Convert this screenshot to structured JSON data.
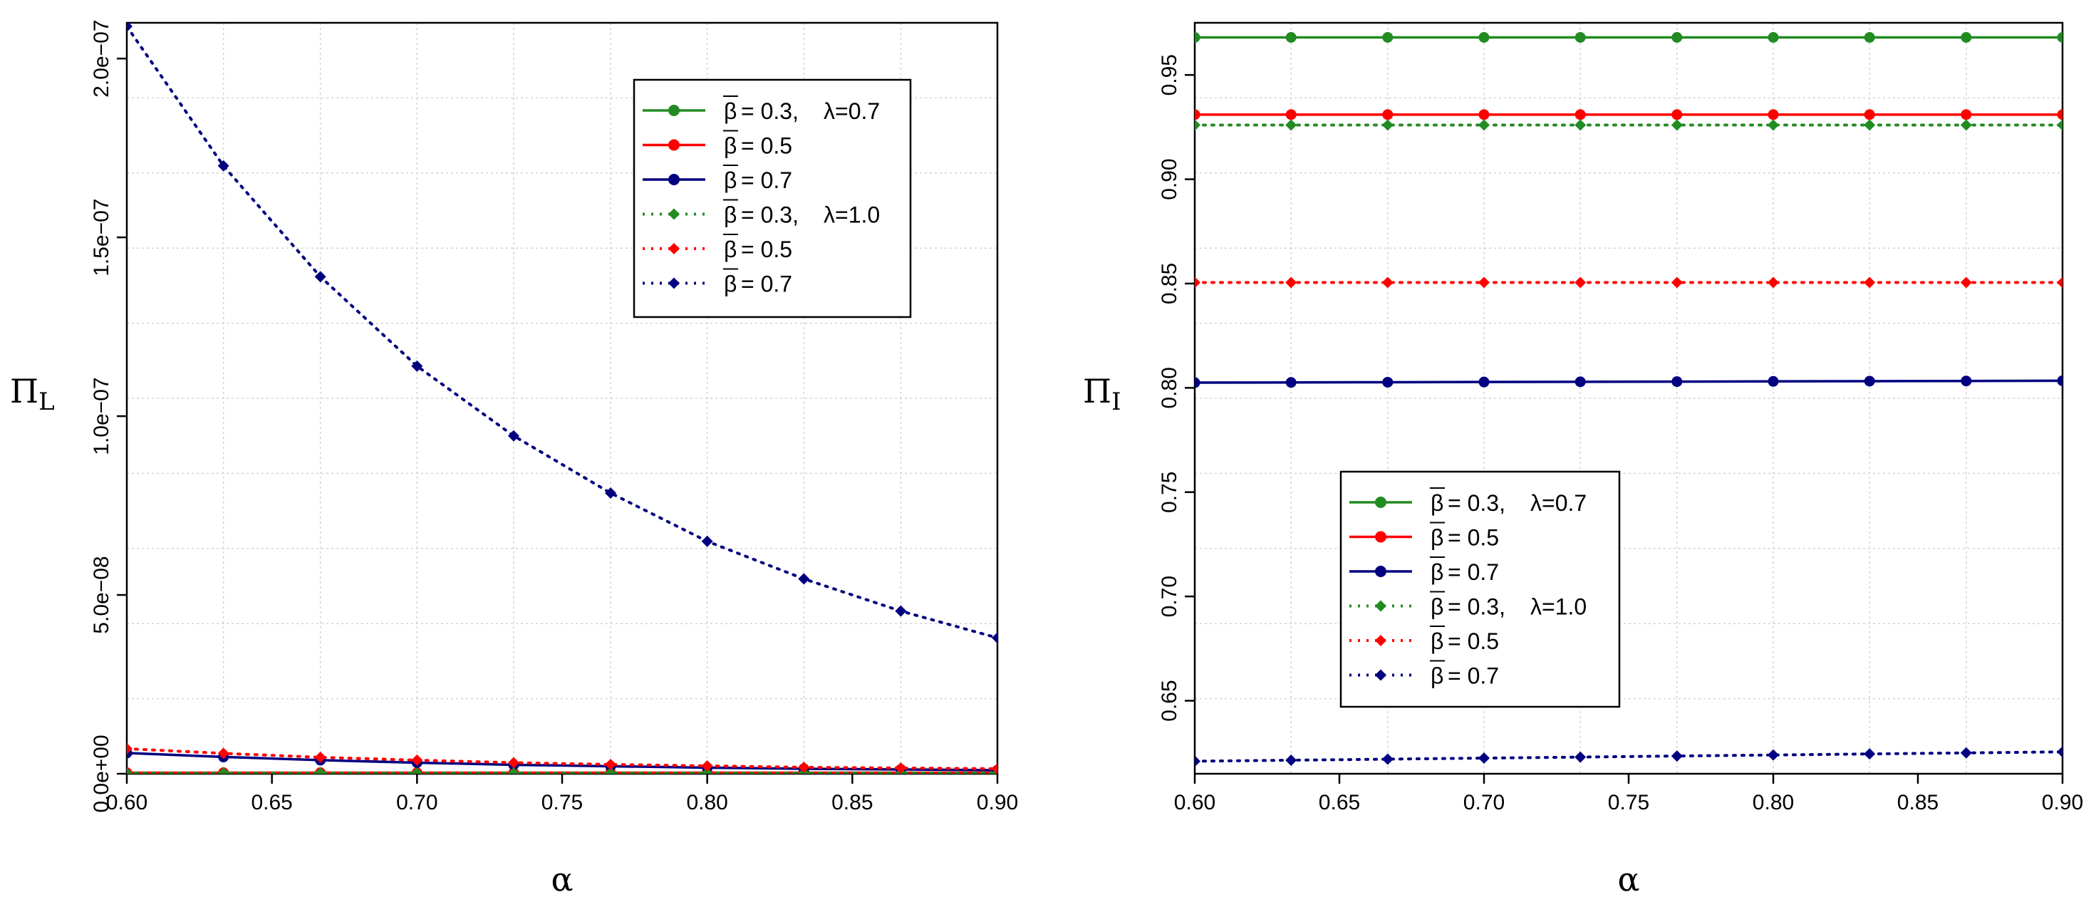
{
  "chart_data": [
    {
      "type": "line",
      "panel": "left",
      "xlabel": "α",
      "ylabel_main": "Π",
      "ylabel_sub": "L",
      "xlim": [
        0.6,
        0.9
      ],
      "ylim": [
        0,
        2.1e-07
      ],
      "x": [
        0.6,
        0.6333,
        0.6667,
        0.7,
        0.7333,
        0.7667,
        0.8,
        0.8333,
        0.8667,
        0.9
      ],
      "xticks": [
        0.6,
        0.65,
        0.7,
        0.75,
        0.8,
        0.85,
        0.9
      ],
      "xtick_labels": [
        "0.60",
        "0.65",
        "0.70",
        "0.75",
        "0.80",
        "0.85",
        "0.90"
      ],
      "yticks": [
        0,
        5e-08,
        1e-07,
        1.5e-07,
        2e-07
      ],
      "ytick_labels": [
        "0.0e+00",
        "5.0e−08",
        "1.0e−07",
        "1.5e−07",
        "2.0e−07"
      ],
      "legend_position": "top-right",
      "series": [
        {
          "name": "β̄=0.3, λ=0.7",
          "color": "#228B22",
          "style": "solid",
          "marker": "circle",
          "values": [
            1e-10,
            1e-10,
            1e-10,
            1e-10,
            1e-10,
            1e-10,
            1e-10,
            1e-10,
            1e-10,
            1e-10
          ]
        },
        {
          "name": "β̄=0.5",
          "color": "#FF0000",
          "style": "solid",
          "marker": "circle",
          "values": [
            3e-10,
            3e-10,
            3e-10,
            3e-10,
            3e-10,
            3e-10,
            3e-10,
            3e-10,
            3e-10,
            3e-10
          ]
        },
        {
          "name": "β̄=0.7",
          "color": "#000080",
          "style": "solid",
          "marker": "circle",
          "values": [
            5.8e-09,
            4.7e-09,
            3.8e-09,
            3.1e-09,
            2.5e-09,
            2.1e-09,
            1.7e-09,
            1.4e-09,
            1.2e-09,
            1e-09
          ]
        },
        {
          "name": "β̄=0.3, λ=1.0",
          "color": "#228B22",
          "style": "dotted",
          "marker": "diamond",
          "values": [
            2e-10,
            2e-10,
            2e-10,
            2e-10,
            2e-10,
            2e-10,
            2e-10,
            2e-10,
            2e-10,
            2e-10
          ]
        },
        {
          "name": "β̄=0.5",
          "color": "#FF0000",
          "style": "dotted",
          "marker": "diamond",
          "values": [
            7e-09,
            5.7e-09,
            4.6e-09,
            3.8e-09,
            3.1e-09,
            2.6e-09,
            2.2e-09,
            1.8e-09,
            1.6e-09,
            1.4e-09
          ]
        },
        {
          "name": "β̄=0.7",
          "color": "#000080",
          "style": "dotted",
          "marker": "diamond",
          "values": [
            2.09e-07,
            1.7e-07,
            1.39e-07,
            1.14e-07,
            9.45e-08,
            7.85e-08,
            6.5e-08,
            5.45e-08,
            4.55e-08,
            3.8e-08
          ]
        }
      ]
    },
    {
      "type": "line",
      "panel": "right",
      "xlabel": "α",
      "ylabel_main": "Π",
      "ylabel_sub": "I",
      "xlim": [
        0.6,
        0.9
      ],
      "ylim": [
        0.615,
        0.975
      ],
      "x": [
        0.6,
        0.6333,
        0.6667,
        0.7,
        0.7333,
        0.7667,
        0.8,
        0.8333,
        0.8667,
        0.9
      ],
      "xticks": [
        0.6,
        0.65,
        0.7,
        0.75,
        0.8,
        0.85,
        0.9
      ],
      "xtick_labels": [
        "0.60",
        "0.65",
        "0.70",
        "0.75",
        "0.80",
        "0.85",
        "0.90"
      ],
      "yticks": [
        0.65,
        0.7,
        0.75,
        0.8,
        0.85,
        0.9,
        0.95
      ],
      "ytick_labels": [
        "0.65",
        "0.70",
        "0.75",
        "0.80",
        "0.85",
        "0.90",
        "0.95"
      ],
      "legend_position": "bottom-center",
      "series": [
        {
          "name": "β̄=0.3, λ=0.7",
          "color": "#228B22",
          "style": "solid",
          "marker": "circle",
          "values": [
            0.968,
            0.968,
            0.968,
            0.968,
            0.968,
            0.968,
            0.968,
            0.968,
            0.968,
            0.968
          ]
        },
        {
          "name": "β̄=0.5",
          "color": "#FF0000",
          "style": "solid",
          "marker": "circle",
          "values": [
            0.931,
            0.931,
            0.931,
            0.931,
            0.931,
            0.931,
            0.931,
            0.931,
            0.931,
            0.931
          ]
        },
        {
          "name": "β̄=0.7",
          "color": "#000080",
          "style": "solid",
          "marker": "circle",
          "values": [
            0.8025,
            0.8026,
            0.8027,
            0.8028,
            0.8029,
            0.803,
            0.8031,
            0.8032,
            0.8033,
            0.8034
          ]
        },
        {
          "name": "β̄=0.3, λ=1.0",
          "color": "#228B22",
          "style": "dotted",
          "marker": "diamond",
          "values": [
            0.926,
            0.926,
            0.926,
            0.926,
            0.926,
            0.926,
            0.926,
            0.926,
            0.926,
            0.926
          ]
        },
        {
          "name": "β̄=0.5",
          "color": "#FF0000",
          "style": "dotted",
          "marker": "diamond",
          "values": [
            0.8505,
            0.8505,
            0.8505,
            0.8505,
            0.8505,
            0.8505,
            0.8505,
            0.8505,
            0.8505,
            0.8505
          ]
        },
        {
          "name": "β̄=0.7",
          "color": "#000080",
          "style": "dotted",
          "marker": "diamond",
          "values": [
            0.621,
            0.6215,
            0.622,
            0.6225,
            0.623,
            0.6235,
            0.624,
            0.6245,
            0.625,
            0.6255
          ]
        }
      ]
    }
  ],
  "legend": [
    {
      "beta_value": "= 0.3,",
      "lambda": "λ=0.7"
    },
    {
      "beta_value": "= 0.5",
      "lambda": ""
    },
    {
      "beta_value": "= 0.7",
      "lambda": ""
    },
    {
      "beta_value": "= 0.3,",
      "lambda": "λ=1.0"
    },
    {
      "beta_value": "= 0.5",
      "lambda": ""
    },
    {
      "beta_value": "= 0.7",
      "lambda": ""
    }
  ]
}
